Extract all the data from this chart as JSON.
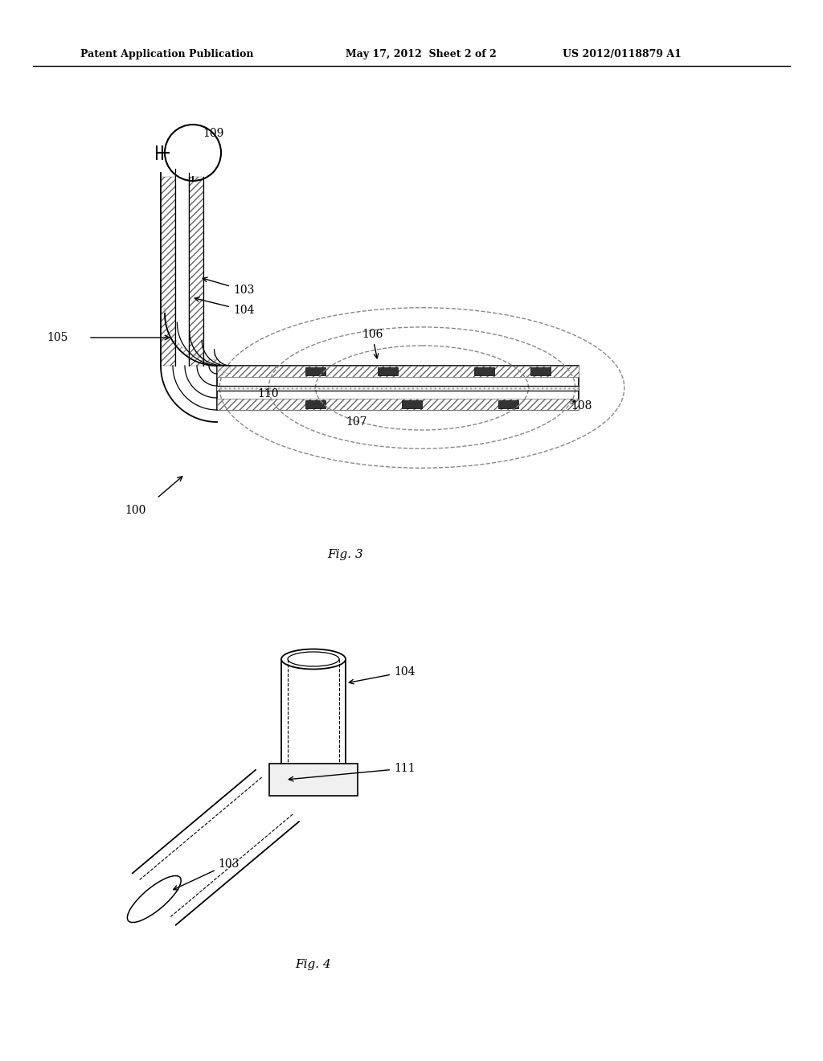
{
  "header_left": "Patent Application Publication",
  "header_mid": "May 17, 2012  Sheet 2 of 2",
  "header_right": "US 2012/0118879 A1",
  "fig3_label": "Fig. 3",
  "fig4_label": "Fig. 4",
  "bg_color": "#ffffff",
  "line_color": "#000000",
  "hatch_color": "#555555",
  "dashed_color": "#888888"
}
